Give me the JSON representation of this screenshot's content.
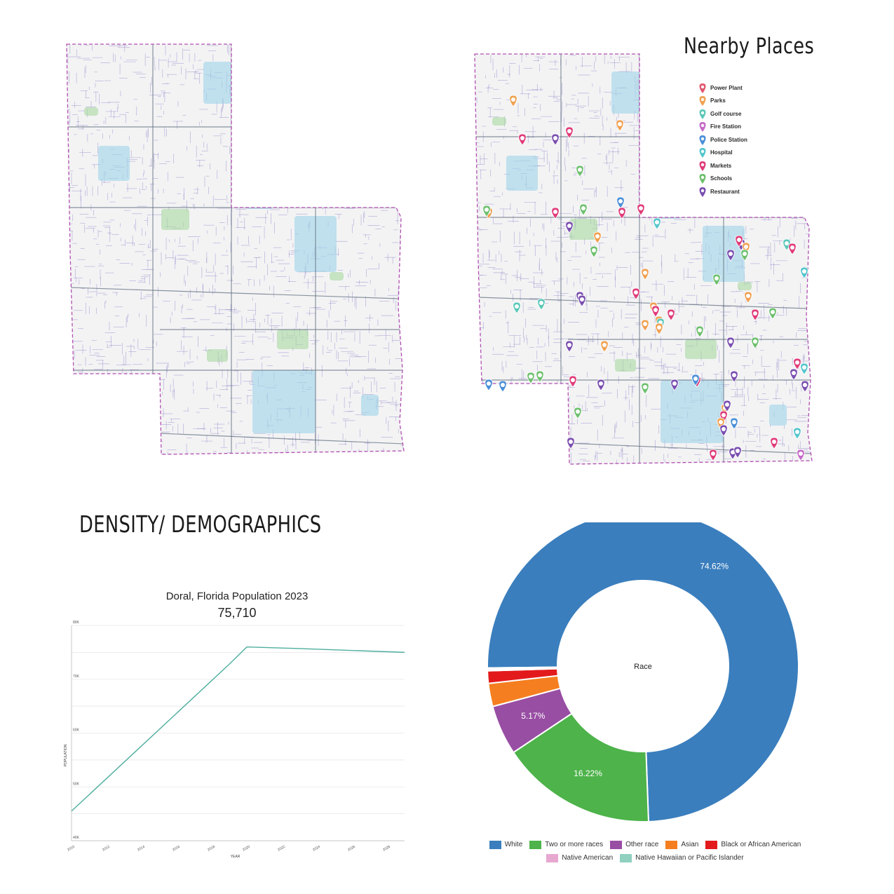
{
  "nearby": {
    "title": "Nearby Places",
    "legend": [
      {
        "label": "Power Plant",
        "color": "#e0566e",
        "icon": "map-pin-icon"
      },
      {
        "label": "Parks",
        "color": "#f0a050",
        "icon": "map-pin-icon"
      },
      {
        "label": "Golf course",
        "color": "#5cc8b8",
        "icon": "map-pin-icon"
      },
      {
        "label": "Fire Station",
        "color": "#c56ac8",
        "icon": "map-pin-icon"
      },
      {
        "label": "Police Station",
        "color": "#4a8fd8",
        "icon": "map-pin-icon"
      },
      {
        "label": "Hospital",
        "color": "#55c6cc",
        "icon": "map-pin-icon"
      },
      {
        "label": "Markets",
        "color": "#e03c7a",
        "icon": "map-pin-icon"
      },
      {
        "label": "Schools",
        "color": "#6ec06e",
        "icon": "map-pin-icon"
      },
      {
        "label": "Restaurant",
        "color": "#7b4fb0",
        "icon": "map-pin-icon"
      }
    ]
  },
  "density": {
    "title": "DENSITY/ DEMOGRAPHICS"
  },
  "colors": {
    "boundary": "#b04fb0",
    "street": "#8a7cc4",
    "road": "#5a6a7a",
    "water": "#9fd3e8",
    "green": "#a9d8a0",
    "line": "#4fae9e"
  },
  "chart_data": [
    {
      "type": "line",
      "title": "Doral, Florida Population 2023",
      "subtitle": "75,710",
      "xlabel": "YEAR",
      "ylabel": "POPULATION",
      "x_ticks": [
        "2010",
        "2012",
        "2014",
        "2016",
        "2018",
        "2020",
        "2022",
        "2024",
        "2026",
        "2028"
      ],
      "y_ticks": [
        "40K",
        "50K",
        "60K",
        "70K",
        "80K"
      ],
      "xlim": [
        2010,
        2029
      ],
      "ylim": [
        40000,
        80000
      ],
      "grid": true,
      "series": [
        {
          "x": [
            2010,
            2019,
            2020,
            2023,
            2029
          ],
          "y": [
            45500,
            72800,
            76000,
            75710,
            75000
          ]
        }
      ]
    },
    {
      "type": "pie",
      "center_label": "Race",
      "legend_position": "bottom",
      "slices": [
        {
          "label": "White",
          "value": 74.62,
          "display": "74.62%",
          "color": "#3a7ebd"
        },
        {
          "label": "Two or more races",
          "value": 16.22,
          "display": "16.22%",
          "color": "#4db34a"
        },
        {
          "label": "Other race",
          "value": 5.17,
          "display": "5.17%",
          "color": "#984ea3"
        },
        {
          "label": "Asian",
          "value": 2.4,
          "display": "",
          "color": "#f57f20"
        },
        {
          "label": "Black or African American",
          "value": 1.3,
          "display": "",
          "color": "#e31a1c"
        },
        {
          "label": "Native American",
          "value": 0.15,
          "display": "",
          "color": "#e7a8d0"
        },
        {
          "label": "Native Hawaiian or Pacific Islander",
          "value": 0.14,
          "display": "",
          "color": "#8fd0bf"
        }
      ]
    }
  ]
}
